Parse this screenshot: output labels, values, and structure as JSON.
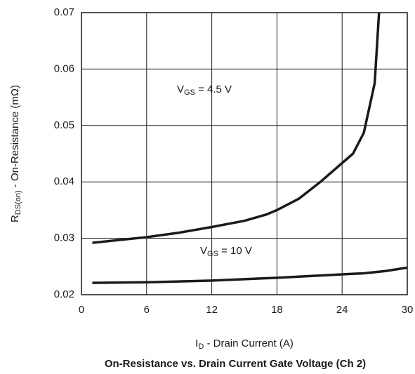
{
  "chart_data": {
    "type": "line",
    "title": "On-Resistance vs. Drain Current Gate Voltage (Ch 2)",
    "x_label": {
      "main": "I",
      "sub": "D",
      "rest": " - Drain Current (A)"
    },
    "y_label": {
      "main": "R",
      "sub": "DS(on)",
      "rest": " - On-Resistance (mΩ)"
    },
    "xlim": [
      0,
      30
    ],
    "xticks": [
      0,
      6,
      12,
      18,
      24,
      30
    ],
    "ylim": [
      0.02,
      0.07
    ],
    "yticks": [
      0.02,
      0.03,
      0.04,
      0.05,
      0.06,
      0.07
    ],
    "grid": true,
    "series": [
      {
        "color": "#1a1a1a",
        "x": [
          1,
          3,
          6,
          9,
          12,
          15,
          17,
          18,
          20,
          22,
          25,
          26,
          27,
          27.4
        ],
        "values": [
          0.0292,
          0.0296,
          0.0302,
          0.031,
          0.032,
          0.0331,
          0.0342,
          0.035,
          0.037,
          0.04,
          0.045,
          0.0487,
          0.0575,
          0.07
        ]
      },
      {
        "color": "#1a1a1a",
        "x": [
          1,
          6,
          12,
          18,
          24,
          26,
          28,
          30
        ],
        "values": [
          0.0221,
          0.0222,
          0.0225,
          0.023,
          0.0236,
          0.0238,
          0.0242,
          0.0248
        ]
      }
    ],
    "annotations": [
      {
        "main": "V",
        "sub": "GS",
        "rest": " = 4.5 V"
      },
      {
        "main": "V",
        "sub": "GS",
        "rest": " = 10 V"
      }
    ]
  }
}
